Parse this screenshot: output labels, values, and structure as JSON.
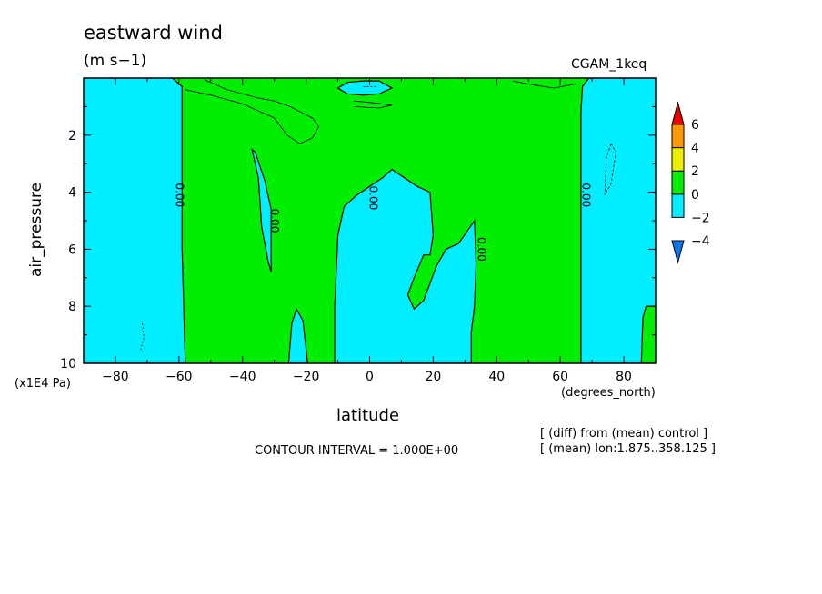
{
  "chart_data": {
    "type": "heatmap",
    "subtype": "filled-contour",
    "title": "eastward wind",
    "units": "(m s−1)",
    "run_label": "CGAM_1keq",
    "xlabel": "latitude",
    "x_unit_label": "(degrees_north)",
    "ylabel": "air_pressure",
    "y_unit_label": "(x1E4 Pa)",
    "xlim": [
      -90,
      90
    ],
    "ylim": [
      10,
      0
    ],
    "x_ticks": [
      -80,
      -60,
      -40,
      -20,
      0,
      20,
      40,
      60,
      80
    ],
    "x_tick_labels": [
      "−80",
      "−60",
      "−40",
      "−20",
      "0",
      "20",
      "40",
      "60",
      "80"
    ],
    "y_ticks": [
      2,
      4,
      6,
      8,
      10
    ],
    "y_tick_labels": [
      "2",
      "4",
      "6",
      "8",
      "10"
    ],
    "contour_interval_text": "CONTOUR INTERVAL = 1.000E+00",
    "notes": [
      "[ (diff) from (mean) control ]",
      "[ (mean) lon:1.875..358.125 ]"
    ],
    "contour_labels": [
      {
        "text": "0.00",
        "lat": -61,
        "p": 4.1
      },
      {
        "text": "0.00",
        "lat": -31,
        "p": 5.0
      },
      {
        "text": "0.00",
        "lat": 0,
        "p": 4.2
      },
      {
        "text": "0.00",
        "lat": 34,
        "p": 6.0
      },
      {
        "text": "0.00",
        "lat": 67,
        "p": 4.1
      }
    ],
    "colorbar": {
      "levels": [
        -4,
        -2,
        0,
        2,
        4,
        6
      ],
      "level_labels": [
        "−4",
        "−2",
        "0",
        "2",
        "4",
        "6"
      ],
      "colors": [
        "#0b77ef",
        "#00eeff",
        "#00ee00",
        "#eeee00",
        "#ff9900",
        "#ee0000"
      ]
    },
    "regions": [
      {
        "level": "-2..0",
        "color": "#00eeff",
        "lat": [
          -90,
          -58
        ],
        "p": [
          0,
          10
        ]
      },
      {
        "level": "-2..0",
        "color": "#00eeff",
        "lat": [
          -37,
          -28
        ],
        "p": [
          2.6,
          6.8
        ]
      },
      {
        "level": "-2..0",
        "color": "#00eeff",
        "lat": [
          -26,
          -19
        ],
        "p": [
          8.1,
          10
        ]
      },
      {
        "level": "-2..0",
        "color": "#00eeff",
        "lat": [
          -11,
          34
        ],
        "p": [
          3.2,
          10
        ]
      },
      {
        "level": "-2..0",
        "color": "#00eeff",
        "lat": [
          -10,
          8
        ],
        "p": [
          0.1,
          0.6
        ]
      },
      {
        "level": "-2..0",
        "color": "#00eeff",
        "lat": [
          66,
          90
        ],
        "p": [
          0,
          10
        ]
      },
      {
        "level": "0..2",
        "color": "#00ee00",
        "lat": [
          -58,
          66
        ],
        "p": [
          0,
          10
        ]
      },
      {
        "level": "0..2",
        "color": "#00ee00",
        "lat": [
          85,
          90
        ],
        "p": [
          8.0,
          10
        ]
      }
    ]
  }
}
